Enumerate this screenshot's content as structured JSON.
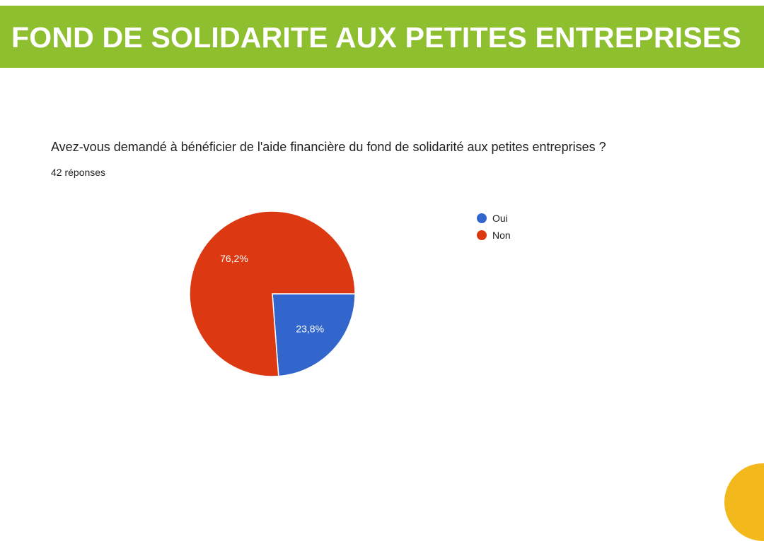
{
  "banner": {
    "title": "FOND DE SOLIDARITE AUX PETITES ENTREPRISES",
    "color": "#8dbf2e"
  },
  "question": "Avez-vous demandé à bénéficier de l'aide financière du fond de solidarité aux petites entreprises ?",
  "responses_label": "42 réponses",
  "decor_color": "#f2b81c",
  "chart_data": {
    "type": "pie",
    "title": "",
    "legend_position": "right",
    "slices": [
      {
        "label": "Oui",
        "value": 23.8,
        "display": "23,8%",
        "color": "#3366cc"
      },
      {
        "label": "Non",
        "value": 76.2,
        "display": "76,2%",
        "color": "#dc3912"
      }
    ]
  }
}
